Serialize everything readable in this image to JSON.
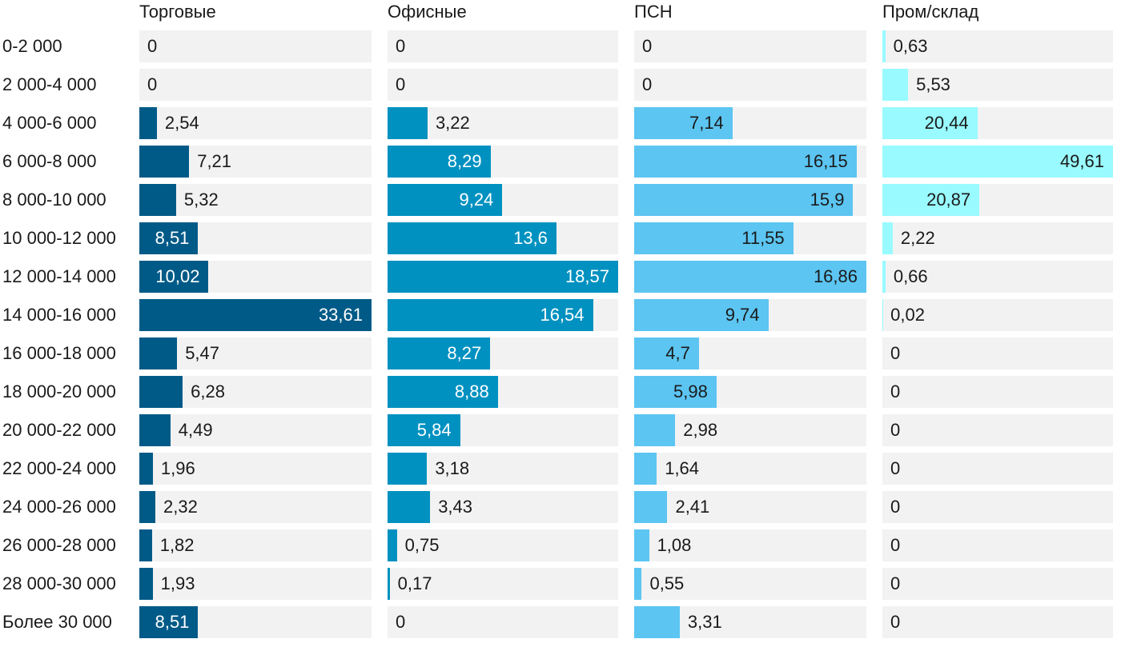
{
  "chart_data": {
    "type": "bar",
    "orientation": "horizontal",
    "layout": "small-multiples",
    "categories": [
      "0-2 000",
      "2 000-4 000",
      "4 000-6 000",
      "6 000-8 000",
      "8 000-10 000",
      "10 000-12 000",
      "12 000-14 000",
      "14 000-16 000",
      "16 000-18 000",
      "18 000-20 000",
      "20 000-22 000",
      "22 000-24 000",
      "24 000-26 000",
      "26 000-28 000",
      "28 000-30 000",
      "Более 30 000"
    ],
    "series": [
      {
        "name": "Торговые",
        "color": "#005a87",
        "label_color_inside": "#ffffff",
        "max": 33.61,
        "values": [
          0,
          0,
          2.54,
          7.21,
          5.32,
          8.51,
          10.02,
          33.61,
          5.47,
          6.28,
          4.49,
          1.96,
          2.32,
          1.82,
          1.93,
          8.51
        ],
        "labels": [
          "0",
          "0",
          "2,54",
          "7,21",
          "5,32",
          "8,51",
          "10,02",
          "33,61",
          "5,47",
          "6,28",
          "4,49",
          "1,96",
          "2,32",
          "1,82",
          "1,93",
          "8,51"
        ]
      },
      {
        "name": "Офисные",
        "color": "#0091c0",
        "label_color_inside": "#ffffff",
        "max": 18.57,
        "values": [
          0,
          0,
          3.22,
          8.29,
          9.24,
          13.6,
          18.57,
          16.54,
          8.27,
          8.88,
          5.84,
          3.18,
          3.43,
          0.75,
          0.17,
          0
        ],
        "labels": [
          "0",
          "0",
          "3,22",
          "8,29",
          "9,24",
          "13,6",
          "18,57",
          "16,54",
          "8,27",
          "8,88",
          "5,84",
          "3,18",
          "3,43",
          "0,75",
          "0,17",
          "0"
        ]
      },
      {
        "name": "ПСН",
        "color": "#5cc5f2",
        "label_color_inside": "#1a1a1a",
        "max": 16.86,
        "values": [
          0,
          0,
          7.14,
          16.15,
          15.9,
          11.55,
          16.86,
          9.74,
          4.7,
          5.98,
          2.98,
          1.64,
          2.41,
          1.08,
          0.55,
          3.31
        ],
        "labels": [
          "0",
          "0",
          "7,14",
          "16,15",
          "15,9",
          "11,55",
          "16,86",
          "9,74",
          "4,7",
          "5,98",
          "2,98",
          "1,64",
          "2,41",
          "1,08",
          "0,55",
          "3,31"
        ]
      },
      {
        "name": "Пром/склад",
        "color": "#99faff",
        "label_color_inside": "#1a1a1a",
        "max": 49.61,
        "values": [
          0.63,
          5.53,
          20.44,
          49.61,
          20.87,
          2.22,
          0.66,
          0.02,
          0,
          0,
          0,
          0,
          0,
          0,
          0,
          0
        ],
        "labels": [
          "0,63",
          "5,53",
          "20,44",
          "49,61",
          "20,87",
          "2,22",
          "0,66",
          "0,02",
          "0",
          "0",
          "0",
          "0",
          "0",
          "0",
          "0",
          "0"
        ]
      }
    ],
    "title": "",
    "xlabel": "",
    "ylabel": "",
    "grid": false,
    "legend": "none"
  }
}
